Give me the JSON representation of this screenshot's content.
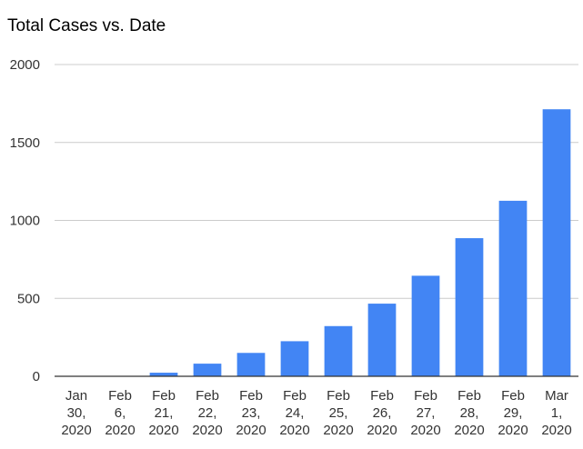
{
  "chart_data": {
    "type": "bar",
    "title": "Total Cases vs. Date",
    "xlabel": "",
    "ylabel": "",
    "categories": [
      [
        "Jan",
        "30,",
        "2020"
      ],
      [
        "Feb",
        "6,",
        "2020"
      ],
      [
        "Feb",
        "21,",
        "2020"
      ],
      [
        "Feb",
        "22,",
        "2020"
      ],
      [
        "Feb",
        "23,",
        "2020"
      ],
      [
        "Feb",
        "24,",
        "2020"
      ],
      [
        "Feb",
        "25,",
        "2020"
      ],
      [
        "Feb",
        "26,",
        "2020"
      ],
      [
        "Feb",
        "27,",
        "2020"
      ],
      [
        "Feb",
        "28,",
        "2020"
      ],
      [
        "Feb",
        "29,",
        "2020"
      ],
      [
        "Mar",
        "1,",
        "2020"
      ]
    ],
    "values": [
      1,
      1,
      23,
      81,
      150,
      225,
      322,
      466,
      645,
      886,
      1126,
      1713
    ],
    "ylim": [
      0,
      2000
    ],
    "yticks": [
      "0",
      "500",
      "1000",
      "1500",
      "2000"
    ],
    "grid": true,
    "legend": "none",
    "bar_color": "#4285f4",
    "grid_color": "#cccccc",
    "axis_color": "#333333"
  }
}
